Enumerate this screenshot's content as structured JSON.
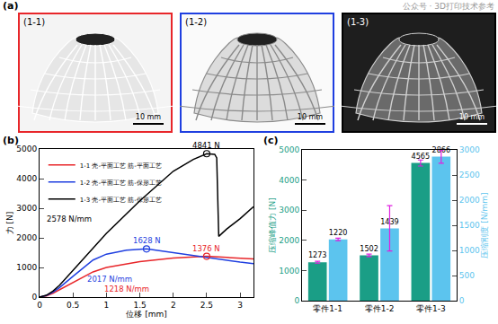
{
  "figure": {
    "panel_labels": [
      "(a)",
      "(b)",
      "(c)"
    ],
    "photos": [
      {
        "label": "(1-1)",
        "scale_bar": "10 mm",
        "color": "#e8262a"
      },
      {
        "label": "(1-2)",
        "scale_bar": "10 mm",
        "color": "#1f3fe0"
      },
      {
        "label": "(1-3)",
        "scale_bar": "10 mm",
        "color": "#000000"
      }
    ],
    "watermark": "公众号 · 3D打印技术参考"
  },
  "chart_data": [
    {
      "type": "line",
      "x_label": "位移 [mm]",
      "y_label": "力 [N]",
      "xlim": [
        0,
        3.2
      ],
      "xticks": [
        0,
        0.5,
        1,
        1.5,
        2,
        2.5,
        3
      ],
      "ylim": [
        0,
        5000
      ],
      "yticks": [
        0,
        1000,
        2000,
        3000,
        4000,
        5000
      ],
      "legend": "upper left",
      "series": [
        {
          "name": "1-1 壳-平面工艺 筋-平面工艺",
          "color": "#e8262a",
          "x": [
            0,
            0.1,
            0.2,
            0.3,
            0.5,
            0.8,
            1.0,
            1.5,
            2.0,
            2.5,
            2.8,
            3.2
          ],
          "values": [
            0,
            40,
            130,
            250,
            490,
            850,
            1000,
            1200,
            1320,
            1376,
            1340,
            1290
          ]
        },
        {
          "name": "1-2 壳-平面工艺 筋-保形工艺",
          "color": "#1f3fe0",
          "x": [
            0,
            0.1,
            0.2,
            0.3,
            0.5,
            0.8,
            1.0,
            1.3,
            1.6,
            2.0,
            2.5,
            3.0,
            3.2
          ],
          "values": [
            0,
            50,
            160,
            320,
            700,
            1250,
            1450,
            1580,
            1628,
            1500,
            1320,
            1180,
            1130
          ]
        },
        {
          "name": "1-3 壳-平面工艺 筋-保形工艺",
          "color": "#000000",
          "x": [
            0,
            0.1,
            0.2,
            0.3,
            0.5,
            0.8,
            1.0,
            1.5,
            2.0,
            2.3,
            2.5,
            2.62,
            2.65,
            2.68,
            2.8,
            3.0,
            3.2
          ],
          "values": [
            0,
            60,
            200,
            400,
            900,
            1650,
            2150,
            3250,
            4250,
            4650,
            4841,
            4820,
            4700,
            2050,
            2300,
            2650,
            3050
          ]
        }
      ],
      "annotations": [
        {
          "text": "4841 N",
          "x": 2.5,
          "y": 4841,
          "color": "#000000",
          "marker": "circle"
        },
        {
          "text": "1628 N",
          "x": 1.6,
          "y": 1628,
          "color": "#1f3fe0",
          "marker": "circle"
        },
        {
          "text": "1376 N",
          "x": 2.5,
          "y": 1376,
          "color": "#e8262a",
          "marker": "circle"
        },
        {
          "text": "2578 N/mm",
          "x": 0.45,
          "y": 2650,
          "color": "#000000"
        },
        {
          "text": "2017 N/mm",
          "x": 1.05,
          "y": 620,
          "color": "#1f3fe0"
        },
        {
          "text": "1218 N/mm",
          "x": 1.3,
          "y": 270,
          "color": "#e8262a"
        }
      ]
    },
    {
      "type": "bar",
      "categories": [
        "零件1-1",
        "零件1-2",
        "零件1-3"
      ],
      "y_label": "压缩峰值力 [N]",
      "y2_label": "压缩刚度 [N/mm]",
      "ylim": [
        0,
        5000
      ],
      "yticks": [
        0,
        1000,
        2000,
        3000,
        4000,
        5000
      ],
      "y2lim": [
        0,
        3000
      ],
      "y2ticks": [
        0,
        500,
        1000,
        1500,
        2000,
        2500,
        3000
      ],
      "data_labels": true,
      "series": [
        {
          "color": "#1a9e86",
          "values": [
            1273,
            1502,
            4565
          ],
          "errors": [
            30,
            40,
            100
          ]
        },
        {
          "color": "#5cc4ee",
          "axis": "y2",
          "values": [
            1220,
            1439,
            2866
          ],
          "errors": [
            25,
            450,
            130
          ]
        }
      ]
    }
  ]
}
